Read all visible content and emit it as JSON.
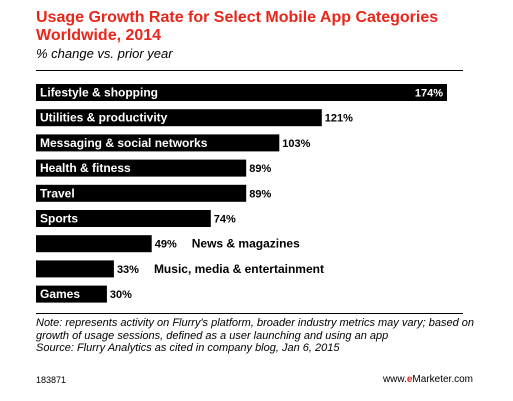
{
  "title": "Usage Growth Rate for Select Mobile App Categories Worldwide, 2014",
  "subtitle": "% change vs. prior year",
  "note": "Note: represents activity on Flurry's platform, broader industry metrics may vary; based on growth of usage sessions, defined as a user launching and using an app",
  "source": "Source: Flurry Analytics as cited in company blog, Jan 6, 2015",
  "footer": {
    "chart_id": "183871",
    "brand_prefix": "www.",
    "brand_e": "e",
    "brand_rest": "Marketer.com"
  },
  "chart_data": {
    "type": "bar",
    "orientation": "horizontal",
    "title": "Usage Growth Rate for Select Mobile App Categories Worldwide, 2014",
    "subtitle": "% change vs. prior year",
    "categories": [
      "Lifestyle & shopping",
      "Utilities & productivity",
      "Messaging & social networks",
      "Health & fitness",
      "Travel",
      "Sports",
      "News & magazines",
      "Music, media & entertainment",
      "Games"
    ],
    "values": [
      174,
      121,
      103,
      89,
      89,
      74,
      49,
      33,
      30
    ],
    "value_labels": [
      "174%",
      "121%",
      "103%",
      "89%",
      "89%",
      "74%",
      "49%",
      "33%",
      "30%"
    ],
    "unit": "%",
    "xlim": [
      0,
      174
    ],
    "bar_color": "#000000",
    "grid": false,
    "legend": "none"
  }
}
